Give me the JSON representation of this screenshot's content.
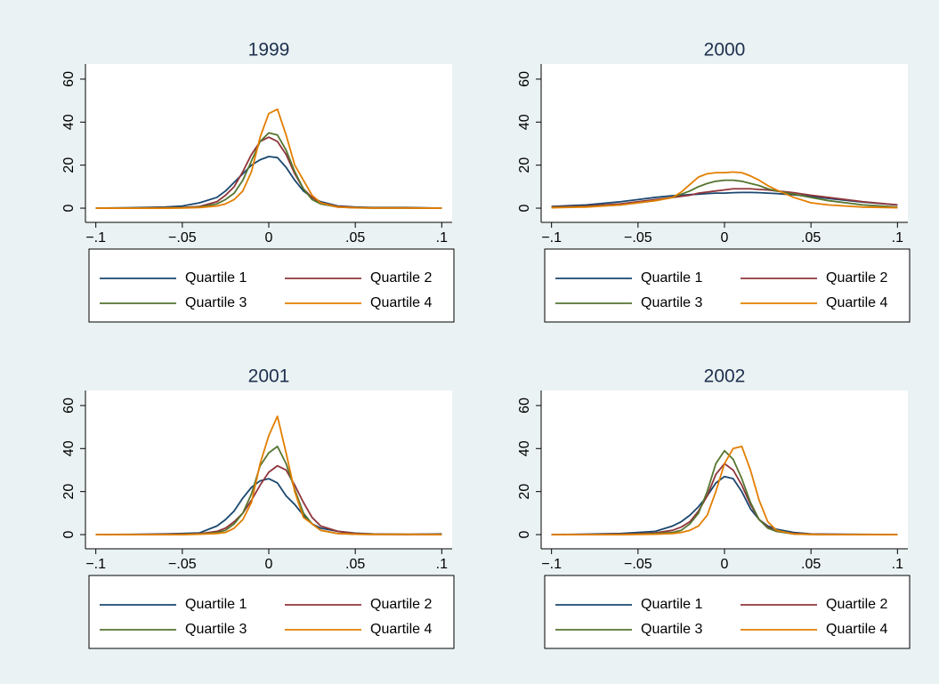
{
  "chart_data": [
    {
      "type": "line",
      "title": "1999",
      "x": [
        -0.1,
        -0.08,
        -0.06,
        -0.05,
        -0.04,
        -0.03,
        -0.025,
        -0.02,
        -0.015,
        -0.01,
        -0.005,
        0,
        0.005,
        0.01,
        0.015,
        0.02,
        0.025,
        0.03,
        0.04,
        0.05,
        0.06,
        0.08,
        0.1
      ],
      "series": [
        {
          "name": "Quartile 1",
          "color": "#1a476f",
          "values": [
            0,
            0.2,
            0.5,
            1,
            2.5,
            5,
            8,
            12,
            16,
            20,
            22.5,
            24,
            23.5,
            19,
            13,
            8,
            5,
            3,
            1,
            0.5,
            0.3,
            0.3,
            0
          ]
        },
        {
          "name": "Quartile 2",
          "color": "#90353b",
          "values": [
            0,
            0,
            0.2,
            0.3,
            0.8,
            3,
            6,
            10,
            17,
            25,
            31,
            33,
            31,
            25,
            16,
            9,
            5,
            2.5,
            0.8,
            0.3,
            0.1,
            0.1,
            0
          ]
        },
        {
          "name": "Quartile 3",
          "color": "#55752f",
          "values": [
            0,
            0,
            0.1,
            0.2,
            0.5,
            2,
            4,
            7,
            13,
            22,
            31,
            35,
            34,
            27,
            17,
            9,
            4,
            2,
            0.5,
            0.2,
            0.1,
            0.1,
            0
          ]
        },
        {
          "name": "Quartile 4",
          "color": "#e37e00",
          "values": [
            0,
            0,
            0,
            0.1,
            0.3,
            1,
            2,
            4,
            8,
            17,
            33,
            44,
            46,
            34,
            20,
            13,
            6,
            2.5,
            0.5,
            0.2,
            0.1,
            0.1,
            0
          ]
        }
      ],
      "xlim": [
        -0.106,
        0.106
      ],
      "ylim": [
        -6.6,
        67
      ],
      "xticks": [
        {
          "value": -0.1,
          "label": "−.1"
        },
        {
          "value": -0.05,
          "label": "−.05"
        },
        0,
        {
          "value": 0.05,
          "label": ".05"
        },
        {
          "value": 0.1,
          "label": ".1"
        }
      ],
      "yticks": [
        0,
        20,
        40,
        60
      ],
      "legend": "bottom"
    },
    {
      "type": "line",
      "title": "2000",
      "x": [
        -0.1,
        -0.08,
        -0.06,
        -0.05,
        -0.04,
        -0.03,
        -0.025,
        -0.02,
        -0.015,
        -0.01,
        -0.005,
        0,
        0.005,
        0.01,
        0.015,
        0.02,
        0.025,
        0.03,
        0.04,
        0.05,
        0.06,
        0.08,
        0.1
      ],
      "series": [
        {
          "name": "Quartile 1",
          "color": "#1a476f",
          "values": [
            0.8,
            1.5,
            3,
            4,
            5,
            5.8,
            6,
            6.3,
            6.5,
            6.8,
            7,
            7,
            7.2,
            7.3,
            7.3,
            7.2,
            7,
            6.8,
            6.2,
            5.5,
            4.5,
            2.8,
            1.5
          ]
        },
        {
          "name": "Quartile 2",
          "color": "#90353b",
          "values": [
            0.5,
            1,
            2,
            3,
            4,
            5,
            5.5,
            6,
            7,
            7.5,
            8,
            8.5,
            9,
            9,
            9,
            8.7,
            8.5,
            8,
            7.2,
            6,
            5,
            3,
            1.5
          ]
        },
        {
          "name": "Quartile 3",
          "color": "#55752f",
          "values": [
            0.3,
            0.7,
            1.5,
            2.5,
            3.5,
            5,
            6.5,
            8,
            10,
            11.5,
            12.5,
            13,
            13,
            12.5,
            11.5,
            10.5,
            9,
            8,
            6.5,
            5,
            3.5,
            1.5,
            0.5
          ]
        },
        {
          "name": "Quartile 4",
          "color": "#e37e00",
          "values": [
            0.2,
            0.5,
            1.5,
            2.5,
            3.5,
            5,
            7.5,
            11,
            14.5,
            16,
            16.5,
            16.5,
            16.8,
            16.5,
            15,
            13,
            10.5,
            8.5,
            5,
            2.5,
            1.5,
            0.5,
            0.2
          ]
        }
      ],
      "xlim": [
        -0.106,
        0.106
      ],
      "ylim": [
        -6.6,
        67
      ],
      "xticks": [
        {
          "value": -0.1,
          "label": "−.1"
        },
        {
          "value": -0.05,
          "label": "−.05"
        },
        0,
        {
          "value": 0.05,
          "label": ".05"
        },
        {
          "value": 0.1,
          "label": ".1"
        }
      ],
      "yticks": [
        0,
        20,
        40,
        60
      ],
      "legend": "bottom"
    },
    {
      "type": "line",
      "title": "2001",
      "x": [
        -0.1,
        -0.08,
        -0.06,
        -0.05,
        -0.04,
        -0.03,
        -0.025,
        -0.02,
        -0.015,
        -0.01,
        -0.005,
        0,
        0.005,
        0.01,
        0.015,
        0.02,
        0.025,
        0.03,
        0.04,
        0.05,
        0.06,
        0.08,
        0.1
      ],
      "series": [
        {
          "name": "Quartile 1",
          "color": "#1a476f",
          "values": [
            0,
            0.1,
            0.3,
            0.5,
            0.8,
            4,
            7,
            11,
            17,
            22,
            25,
            26,
            24,
            18,
            14,
            9,
            5,
            3,
            1.5,
            0.7,
            0.3,
            0.1,
            0.3
          ]
        },
        {
          "name": "Quartile 2",
          "color": "#90353b",
          "values": [
            0,
            0,
            0.1,
            0.2,
            0.4,
            1.5,
            3,
            6,
            10,
            16,
            23,
            29,
            32,
            30,
            23,
            15,
            8,
            4,
            1.5,
            0.5,
            0.2,
            0.1,
            0.1
          ]
        },
        {
          "name": "Quartile 3",
          "color": "#55752f",
          "values": [
            0,
            0,
            0,
            0.1,
            0.3,
            1,
            2,
            5,
            10,
            19,
            32,
            38,
            41,
            33,
            21,
            10,
            5,
            2,
            0.5,
            0.2,
            0.1,
            0.1,
            0.1
          ]
        },
        {
          "name": "Quartile 4",
          "color": "#e37e00",
          "values": [
            0,
            0,
            0,
            0,
            0.2,
            0.5,
            1,
            3,
            7,
            15,
            33,
            46,
            55,
            38,
            20,
            8,
            5,
            2,
            0.5,
            0.2,
            0.1,
            0.1,
            0
          ]
        }
      ],
      "xlim": [
        -0.106,
        0.106
      ],
      "ylim": [
        -6.6,
        67
      ],
      "xticks": [
        {
          "value": -0.1,
          "label": "−.1"
        },
        {
          "value": -0.05,
          "label": "−.05"
        },
        0,
        {
          "value": 0.05,
          "label": ".05"
        },
        {
          "value": 0.1,
          "label": ".1"
        }
      ],
      "yticks": [
        0,
        20,
        40,
        60
      ],
      "legend": "bottom"
    },
    {
      "type": "line",
      "title": "2002",
      "x": [
        -0.1,
        -0.08,
        -0.06,
        -0.05,
        -0.04,
        -0.03,
        -0.025,
        -0.02,
        -0.015,
        -0.01,
        -0.005,
        0,
        0.005,
        0.01,
        0.015,
        0.02,
        0.025,
        0.03,
        0.04,
        0.05,
        0.06,
        0.08,
        0.1
      ],
      "series": [
        {
          "name": "Quartile 1",
          "color": "#1a476f",
          "values": [
            0,
            0.2,
            0.5,
            1,
            1.5,
            4,
            6,
            9,
            13,
            18,
            24,
            27,
            26,
            20,
            12,
            7,
            4,
            2.5,
            1,
            0.3,
            0.2,
            0.1,
            0
          ]
        },
        {
          "name": "Quartile 2",
          "color": "#90353b",
          "values": [
            0,
            0,
            0.2,
            0.4,
            0.8,
            2,
            3.5,
            6,
            11,
            18,
            28,
            33,
            30,
            23,
            14,
            7,
            3.5,
            1.5,
            0.5,
            0.2,
            0.1,
            0,
            0
          ]
        },
        {
          "name": "Quartile 3",
          "color": "#55752f",
          "values": [
            0,
            0,
            0.1,
            0.2,
            0.5,
            1,
            2,
            5,
            10,
            20,
            33,
            39,
            35,
            26,
            15,
            7,
            3,
            1.5,
            0.3,
            0.1,
            0,
            0,
            0
          ]
        },
        {
          "name": "Quartile 4",
          "color": "#e37e00",
          "values": [
            0,
            0,
            0,
            0.1,
            0.2,
            0.5,
            1,
            2,
            4,
            9,
            20,
            33,
            40,
            41,
            30,
            16,
            6,
            2,
            0.3,
            0.1,
            0,
            0,
            0
          ]
        }
      ],
      "xlim": [
        -0.106,
        0.106
      ],
      "ylim": [
        -6.6,
        67
      ],
      "xticks": [
        {
          "value": -0.1,
          "label": "−.1"
        },
        {
          "value": -0.05,
          "label": "−.05"
        },
        0,
        {
          "value": 0.05,
          "label": ".05"
        },
        {
          "value": 0.1,
          "label": ".1"
        }
      ],
      "yticks": [
        0,
        20,
        40,
        60
      ],
      "legend": "bottom"
    }
  ]
}
